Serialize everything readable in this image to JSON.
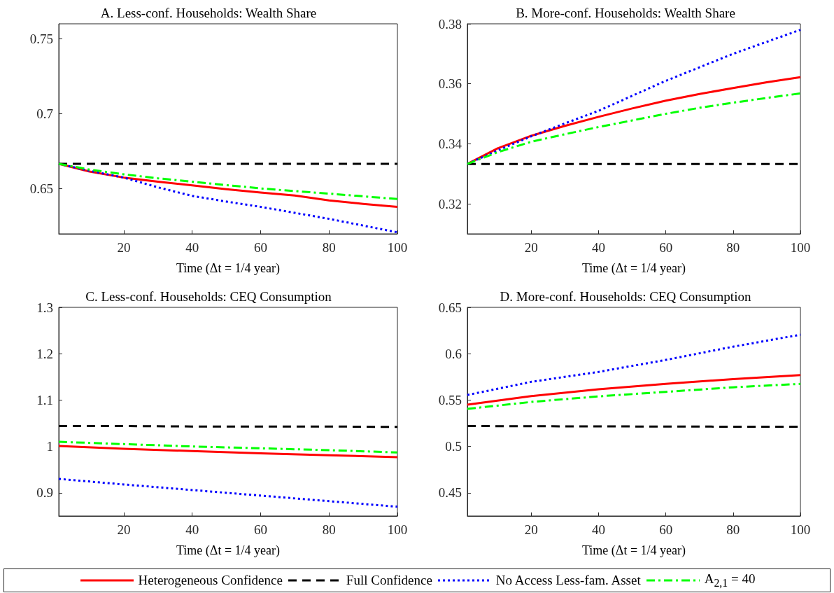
{
  "chart_data": [
    {
      "type": "line",
      "title": "A. Less-conf. Households: Wealth Share",
      "xlabel": "Time (Δt = 1/4 year)",
      "xlim": [
        1,
        100
      ],
      "xticks": [
        20,
        40,
        60,
        80,
        100
      ],
      "ylim": [
        0.62,
        0.76
      ],
      "yticks": [
        0.65,
        0.7,
        0.75
      ],
      "grid": false,
      "legend": "bottom",
      "x": [
        1,
        10,
        20,
        30,
        40,
        50,
        60,
        70,
        80,
        90,
        100
      ],
      "series": [
        {
          "name": "Heterogeneous Confidence",
          "color": "#ff0000",
          "line_style": "solid",
          "values": [
            0.6667,
            0.6615,
            0.6575,
            0.6548,
            0.6523,
            0.6498,
            0.6475,
            0.6455,
            0.6423,
            0.64,
            0.638
          ]
        },
        {
          "name": "Full Confidence",
          "color": "#000000",
          "line_style": "dashed",
          "values": [
            0.6667,
            0.6667,
            0.6667,
            0.6667,
            0.6667,
            0.6667,
            0.6667,
            0.6667,
            0.6667,
            0.6667,
            0.6667
          ]
        },
        {
          "name": "No Access Less-fam. Asset",
          "color": "#0000ff",
          "line_style": "dotted",
          "values": [
            0.6667,
            0.662,
            0.6575,
            0.651,
            0.6453,
            0.6415,
            0.638,
            0.634,
            0.63,
            0.6255,
            0.621
          ]
        },
        {
          "name": "A$_{2,1}$ = 40",
          "color": "#00ff00",
          "line_style": "dashdot",
          "values": [
            0.6667,
            0.6628,
            0.6597,
            0.657,
            0.6548,
            0.6525,
            0.6503,
            0.6485,
            0.6468,
            0.645,
            0.6432
          ]
        }
      ]
    },
    {
      "type": "line",
      "title": "B. More-conf. Households: Wealth Share",
      "xlabel": "Time (Δt = 1/4 year)",
      "xlim": [
        1,
        100
      ],
      "xticks": [
        20,
        40,
        60,
        80,
        100
      ],
      "ylim": [
        0.31,
        0.38
      ],
      "yticks": [
        0.32,
        0.34,
        0.36,
        0.38
      ],
      "grid": false,
      "x": [
        1,
        10,
        20,
        30,
        40,
        50,
        60,
        70,
        80,
        90,
        100
      ],
      "series": [
        {
          "color": "#ff0000",
          "line_style": "solid",
          "values": [
            0.3333,
            0.3385,
            0.3427,
            0.346,
            0.349,
            0.3518,
            0.3544,
            0.3566,
            0.3586,
            0.3605,
            0.3622
          ]
        },
        {
          "color": "#000000",
          "line_style": "dashed",
          "values": [
            0.3333,
            0.3333,
            0.3333,
            0.3333,
            0.3333,
            0.3333,
            0.3333,
            0.3333,
            0.3333,
            0.3333,
            0.3333
          ]
        },
        {
          "color": "#0000ff",
          "line_style": "dotted",
          "values": [
            0.3333,
            0.3378,
            0.3425,
            0.3468,
            0.351,
            0.356,
            0.361,
            0.3655,
            0.37,
            0.374,
            0.378
          ]
        },
        {
          "color": "#00ff00",
          "line_style": "dashdot",
          "values": [
            0.3333,
            0.3372,
            0.3407,
            0.3432,
            0.3456,
            0.3478,
            0.35,
            0.352,
            0.3537,
            0.3553,
            0.3568
          ]
        }
      ]
    },
    {
      "type": "line",
      "title": "C. Less-conf. Households: CEQ Consumption",
      "xlabel": "Time (Δt = 1/4 year)",
      "xlim": [
        1,
        100
      ],
      "xticks": [
        20,
        40,
        60,
        80,
        100
      ],
      "ylim": [
        0.85,
        1.3
      ],
      "yticks": [
        0.9,
        1,
        1.1,
        1.2,
        1.3
      ],
      "grid": false,
      "x": [
        1,
        20,
        40,
        60,
        80,
        100
      ],
      "series": [
        {
          "color": "#ff0000",
          "line_style": "solid",
          "values": [
            1.001,
            0.995,
            0.99,
            0.985,
            0.981,
            0.977
          ]
        },
        {
          "color": "#000000",
          "line_style": "dashed",
          "values": [
            1.044,
            1.044,
            1.043,
            1.043,
            1.043,
            1.042
          ]
        },
        {
          "color": "#0000ff",
          "line_style": "dotted",
          "values": [
            0.93,
            0.918,
            0.906,
            0.894,
            0.882,
            0.87
          ]
        },
        {
          "color": "#00ff00",
          "line_style": "dashdot",
          "values": [
            1.01,
            1.005,
            1.0,
            0.996,
            0.992,
            0.987
          ]
        }
      ]
    },
    {
      "type": "line",
      "title": "D. More-conf. Households: CEQ Consumption",
      "xlabel": "Time (Δt = 1/4 year)",
      "xlim": [
        1,
        100
      ],
      "xticks": [
        20,
        40,
        60,
        80,
        100
      ],
      "ylim": [
        0.425,
        0.65
      ],
      "yticks": [
        0.45,
        0.5,
        0.55,
        0.6,
        0.65
      ],
      "grid": false,
      "x": [
        1,
        20,
        40,
        60,
        80,
        100
      ],
      "series": [
        {
          "color": "#ff0000",
          "line_style": "solid",
          "values": [
            0.545,
            0.5543,
            0.5617,
            0.5675,
            0.5726,
            0.5769
          ]
        },
        {
          "color": "#000000",
          "line_style": "dashed",
          "values": [
            0.522,
            0.5218,
            0.5216,
            0.5215,
            0.5213,
            0.5212
          ]
        },
        {
          "color": "#0000ff",
          "line_style": "dotted",
          "values": [
            0.5555,
            0.5697,
            0.5804,
            0.5933,
            0.6076,
            0.6205
          ]
        },
        {
          "color": "#00ff00",
          "line_style": "dashdot",
          "values": [
            0.5405,
            0.548,
            0.554,
            0.5589,
            0.5638,
            0.5675
          ]
        }
      ]
    }
  ]
}
